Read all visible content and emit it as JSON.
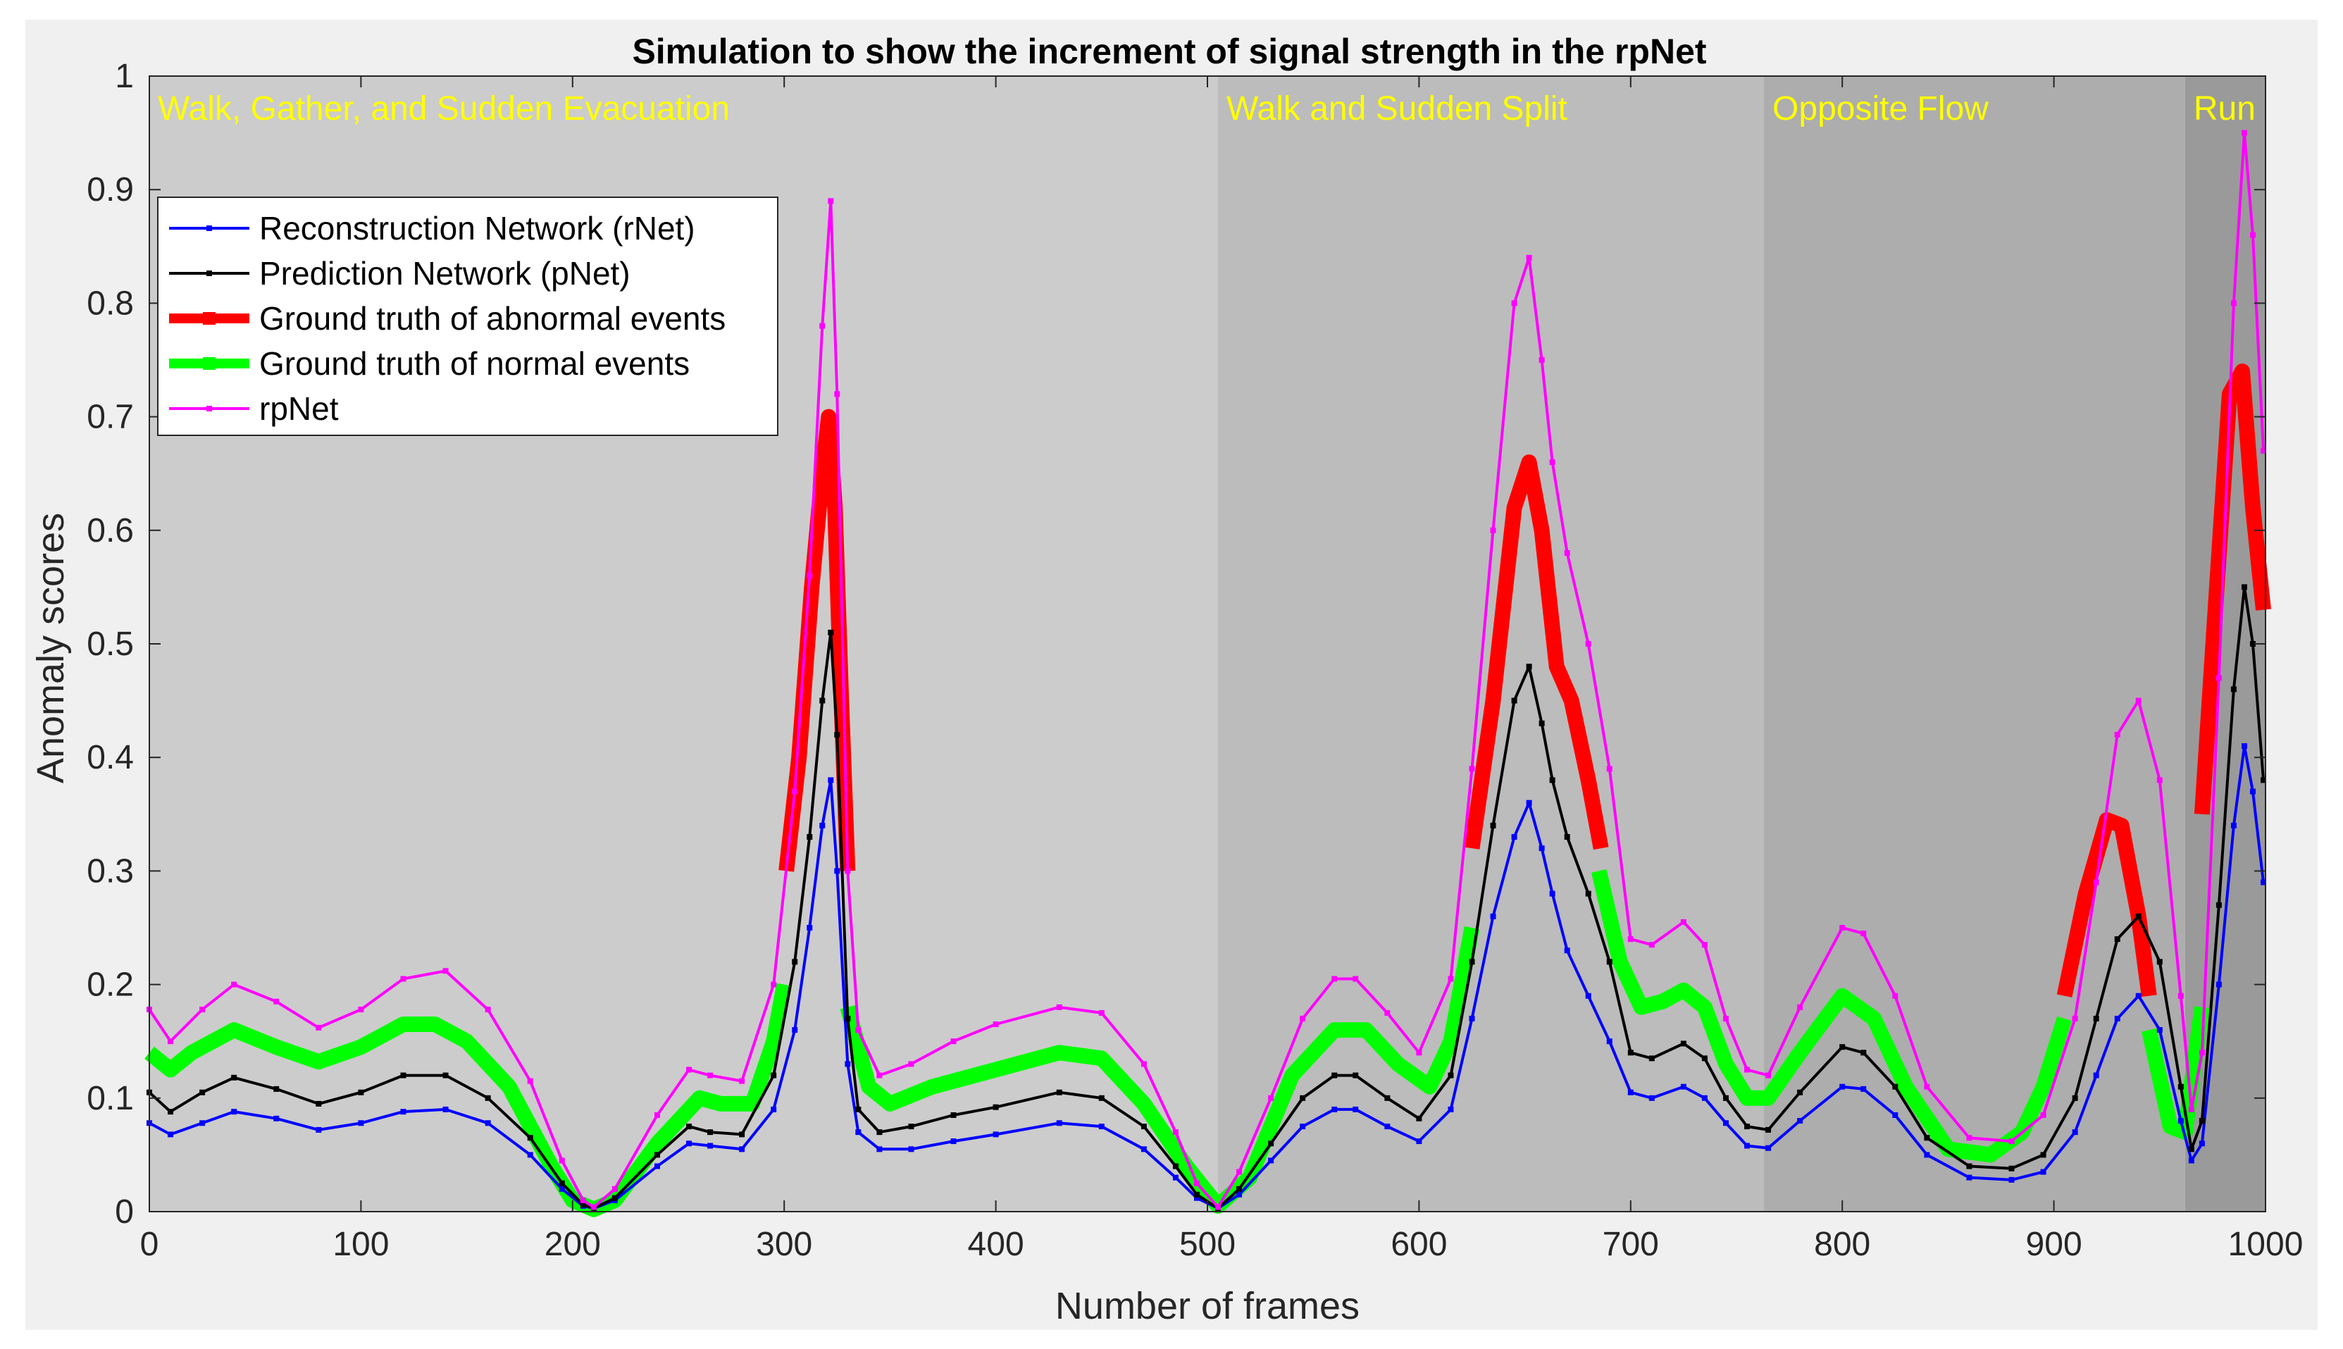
{
  "chart_data": {
    "type": "line",
    "title": "Simulation to show the increment of signal strength in the rpNet",
    "xlabel": "Number of frames",
    "ylabel": "Anomaly scores",
    "xlim": [
      0,
      1000
    ],
    "ylim": [
      0,
      1
    ],
    "x_ticks": [
      "0",
      "100",
      "200",
      "300",
      "400",
      "500",
      "600",
      "700",
      "800",
      "900",
      "1000"
    ],
    "y_ticks": [
      "0",
      "0.1",
      "0.2",
      "0.3",
      "0.4",
      "0.5",
      "0.6",
      "0.7",
      "0.8",
      "0.9",
      "1"
    ],
    "legend_position": "top-left",
    "regions": [
      {
        "label": "Walk, Gather, and Sudden Evacuation",
        "x_start": 0,
        "x_end": 505,
        "color": "#cccccc"
      },
      {
        "label": "Walk and Sudden Split",
        "x_start": 505,
        "x_end": 763,
        "color": "#bcbcbc"
      },
      {
        "label": "Opposite Flow",
        "x_start": 763,
        "x_end": 962,
        "color": "#adadad"
      },
      {
        "label": "Run",
        "x_start": 962,
        "x_end": 1000,
        "color": "#9a9a9a"
      }
    ],
    "region_label_color": "#ffff00",
    "series": [
      {
        "name": "Ground truth of normal events",
        "color": "#00ff00",
        "style": "band",
        "x": [
          0,
          10,
          20,
          40,
          60,
          80,
          100,
          120,
          135,
          150,
          170,
          190,
          200,
          210,
          220,
          240,
          260,
          270,
          285,
          295,
          300
        ],
        "values": [
          0.14,
          0.125,
          0.14,
          0.16,
          0.145,
          0.132,
          0.145,
          0.165,
          0.165,
          0.15,
          0.11,
          0.04,
          0.01,
          0.002,
          0.01,
          0.06,
          0.1,
          0.095,
          0.095,
          0.15,
          0.2
        ]
      },
      {
        "name": "Ground truth of normal events",
        "color": "#00ff00",
        "style": "band",
        "x": [
          330,
          340,
          350,
          370,
          400,
          430,
          450,
          470,
          490,
          505,
          520,
          540,
          560,
          575,
          590,
          605,
          615,
          625
        ],
        "values": [
          0.18,
          0.11,
          0.095,
          0.11,
          0.125,
          0.14,
          0.135,
          0.095,
          0.04,
          0.005,
          0.03,
          0.12,
          0.16,
          0.16,
          0.13,
          0.11,
          0.15,
          0.25
        ]
      },
      {
        "name": "Ground truth of normal events",
        "color": "#00ff00",
        "style": "band",
        "x": [
          685,
          695,
          705,
          715,
          725,
          735,
          745,
          755,
          765,
          780,
          800,
          815,
          830,
          850,
          870,
          885,
          895,
          905
        ],
        "values": [
          0.3,
          0.22,
          0.18,
          0.185,
          0.195,
          0.18,
          0.13,
          0.1,
          0.1,
          0.14,
          0.19,
          0.17,
          0.11,
          0.055,
          0.05,
          0.07,
          0.11,
          0.17
        ]
      },
      {
        "name": "Ground truth of normal events",
        "color": "#00ff00",
        "style": "band",
        "x": [
          945,
          955,
          962,
          970
        ],
        "values": [
          0.16,
          0.075,
          0.07,
          0.18
        ]
      },
      {
        "name": "Ground truth of abnormal events",
        "color": "#ff0000",
        "style": "band",
        "x": [
          301,
          307,
          313,
          318,
          321,
          324,
          327,
          330
        ],
        "values": [
          0.3,
          0.4,
          0.55,
          0.65,
          0.7,
          0.62,
          0.45,
          0.3
        ]
      },
      {
        "name": "Ground truth of abnormal events",
        "color": "#ff0000",
        "style": "band",
        "x": [
          625,
          635,
          645,
          652,
          658,
          665,
          672,
          680,
          686
        ],
        "values": [
          0.32,
          0.45,
          0.62,
          0.66,
          0.6,
          0.48,
          0.45,
          0.38,
          0.32
        ]
      },
      {
        "name": "Ground truth of abnormal events",
        "color": "#ff0000",
        "style": "band",
        "x": [
          905,
          915,
          925,
          932,
          940,
          945
        ],
        "values": [
          0.19,
          0.28,
          0.345,
          0.34,
          0.26,
          0.19
        ]
      },
      {
        "name": "Ground truth of abnormal events",
        "color": "#ff0000",
        "style": "band",
        "x": [
          970,
          977,
          983,
          989,
          994,
          999
        ],
        "values": [
          0.35,
          0.55,
          0.72,
          0.74,
          0.62,
          0.53
        ]
      },
      {
        "name": "Reconstruction Network (rNet)",
        "color": "#0000ff",
        "style": "marker-line",
        "x": [
          0,
          10,
          25,
          40,
          60,
          80,
          100,
          120,
          140,
          160,
          180,
          195,
          205,
          210,
          220,
          240,
          255,
          265,
          280,
          295,
          305,
          312,
          318,
          322,
          325,
          330,
          335,
          345,
          360,
          380,
          400,
          430,
          450,
          470,
          485,
          495,
          505,
          515,
          530,
          545,
          560,
          570,
          585,
          600,
          615,
          625,
          635,
          645,
          652,
          658,
          663,
          670,
          680,
          690,
          700,
          710,
          725,
          735,
          745,
          755,
          765,
          780,
          800,
          810,
          825,
          840,
          860,
          880,
          895,
          910,
          920,
          930,
          940,
          950,
          960,
          965,
          970,
          978,
          985,
          990,
          994,
          999
        ],
        "values": [
          0.078,
          0.068,
          0.078,
          0.088,
          0.082,
          0.072,
          0.078,
          0.088,
          0.09,
          0.078,
          0.05,
          0.02,
          0.005,
          0.003,
          0.01,
          0.04,
          0.06,
          0.058,
          0.055,
          0.09,
          0.16,
          0.25,
          0.34,
          0.38,
          0.3,
          0.13,
          0.07,
          0.055,
          0.055,
          0.062,
          0.068,
          0.078,
          0.075,
          0.055,
          0.03,
          0.012,
          0.003,
          0.015,
          0.045,
          0.075,
          0.09,
          0.09,
          0.075,
          0.062,
          0.09,
          0.17,
          0.26,
          0.33,
          0.36,
          0.32,
          0.28,
          0.23,
          0.19,
          0.15,
          0.105,
          0.1,
          0.11,
          0.1,
          0.078,
          0.058,
          0.056,
          0.08,
          0.11,
          0.108,
          0.085,
          0.05,
          0.03,
          0.028,
          0.035,
          0.07,
          0.12,
          0.17,
          0.19,
          0.16,
          0.08,
          0.045,
          0.06,
          0.2,
          0.34,
          0.41,
          0.37,
          0.29
        ]
      },
      {
        "name": "Prediction Network (pNet)",
        "color": "#000000",
        "style": "marker-line",
        "x": [
          0,
          10,
          25,
          40,
          60,
          80,
          100,
          120,
          140,
          160,
          180,
          195,
          205,
          210,
          220,
          240,
          255,
          265,
          280,
          295,
          305,
          312,
          318,
          322,
          325,
          330,
          335,
          345,
          360,
          380,
          400,
          430,
          450,
          470,
          485,
          495,
          505,
          515,
          530,
          545,
          560,
          570,
          585,
          600,
          615,
          625,
          635,
          645,
          652,
          658,
          663,
          670,
          680,
          690,
          700,
          710,
          725,
          735,
          745,
          755,
          765,
          780,
          800,
          810,
          825,
          840,
          860,
          880,
          895,
          910,
          920,
          930,
          940,
          950,
          960,
          965,
          970,
          978,
          985,
          990,
          994,
          999
        ],
        "values": [
          0.105,
          0.088,
          0.105,
          0.118,
          0.108,
          0.095,
          0.105,
          0.12,
          0.12,
          0.1,
          0.065,
          0.025,
          0.006,
          0.003,
          0.012,
          0.05,
          0.075,
          0.07,
          0.068,
          0.12,
          0.22,
          0.33,
          0.45,
          0.51,
          0.42,
          0.17,
          0.09,
          0.07,
          0.075,
          0.085,
          0.092,
          0.105,
          0.1,
          0.075,
          0.04,
          0.015,
          0.003,
          0.02,
          0.06,
          0.1,
          0.12,
          0.12,
          0.1,
          0.082,
          0.12,
          0.22,
          0.34,
          0.45,
          0.48,
          0.43,
          0.38,
          0.33,
          0.28,
          0.22,
          0.14,
          0.135,
          0.148,
          0.135,
          0.1,
          0.075,
          0.072,
          0.105,
          0.145,
          0.14,
          0.11,
          0.065,
          0.04,
          0.038,
          0.05,
          0.1,
          0.17,
          0.24,
          0.26,
          0.22,
          0.11,
          0.055,
          0.08,
          0.27,
          0.46,
          0.55,
          0.5,
          0.38
        ]
      },
      {
        "name": "rpNet",
        "color": "#ff00ff",
        "style": "marker-line",
        "x": [
          0,
          10,
          25,
          40,
          60,
          80,
          100,
          120,
          140,
          160,
          180,
          195,
          205,
          210,
          220,
          240,
          255,
          265,
          280,
          295,
          305,
          312,
          318,
          322,
          325,
          330,
          335,
          345,
          360,
          380,
          400,
          430,
          450,
          470,
          485,
          495,
          505,
          515,
          530,
          545,
          560,
          570,
          585,
          600,
          615,
          625,
          635,
          645,
          652,
          658,
          663,
          670,
          680,
          690,
          700,
          710,
          725,
          735,
          745,
          755,
          765,
          780,
          800,
          810,
          825,
          840,
          860,
          880,
          895,
          910,
          920,
          930,
          940,
          950,
          960,
          965,
          970,
          978,
          985,
          990,
          994,
          999
        ],
        "values": [
          0.178,
          0.15,
          0.178,
          0.2,
          0.185,
          0.162,
          0.178,
          0.205,
          0.212,
          0.178,
          0.115,
          0.045,
          0.01,
          0.004,
          0.02,
          0.085,
          0.125,
          0.12,
          0.115,
          0.2,
          0.37,
          0.56,
          0.78,
          0.89,
          0.72,
          0.3,
          0.16,
          0.12,
          0.13,
          0.15,
          0.165,
          0.18,
          0.175,
          0.13,
          0.07,
          0.025,
          0.004,
          0.035,
          0.1,
          0.17,
          0.205,
          0.205,
          0.175,
          0.14,
          0.205,
          0.39,
          0.6,
          0.8,
          0.84,
          0.75,
          0.66,
          0.58,
          0.5,
          0.39,
          0.24,
          0.235,
          0.255,
          0.235,
          0.17,
          0.125,
          0.12,
          0.18,
          0.25,
          0.245,
          0.19,
          0.11,
          0.065,
          0.062,
          0.085,
          0.17,
          0.29,
          0.42,
          0.45,
          0.38,
          0.19,
          0.09,
          0.14,
          0.47,
          0.8,
          0.95,
          0.86,
          0.67
        ]
      }
    ],
    "legend_entries": [
      {
        "name": "Reconstruction Network (rNet)",
        "color": "#0000ff",
        "style": "thin"
      },
      {
        "name": "Prediction Network (pNet)",
        "color": "#000000",
        "style": "thin"
      },
      {
        "name": "Ground truth of abnormal events",
        "color": "#ff0000",
        "style": "thick"
      },
      {
        "name": "Ground truth of normal events",
        "color": "#00ff00",
        "style": "thick"
      },
      {
        "name": "rpNet",
        "color": "#ff00ff",
        "style": "thin"
      }
    ]
  }
}
